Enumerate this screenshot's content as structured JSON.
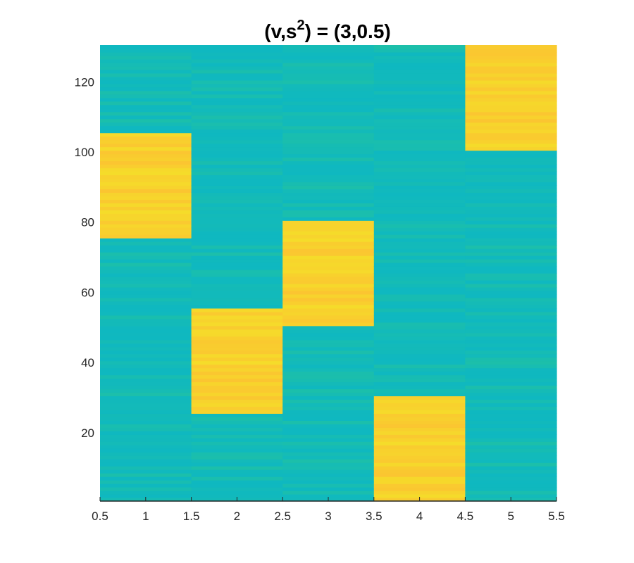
{
  "chart_data": {
    "type": "heatmap",
    "title_main": "(v,s",
    "title_sup": "2",
    "title_rest": ") = (3,0.5)",
    "xlim": [
      0.5,
      5.5
    ],
    "ylim": [
      0.5,
      130.5
    ],
    "xticks": [
      "0.5",
      "1",
      "1.5",
      "2",
      "2.5",
      "3",
      "3.5",
      "4",
      "4.5",
      "5",
      "5.5"
    ],
    "yticks": [
      "20",
      "40",
      "60",
      "80",
      "100",
      "120"
    ],
    "columns": [
      1,
      2,
      3,
      4,
      5
    ],
    "rows": 130,
    "blocks": [
      {
        "column": 1,
        "row_from": 76,
        "row_to": 105
      },
      {
        "column": 2,
        "row_from": 26,
        "row_to": 55
      },
      {
        "column": 3,
        "row_from": 51,
        "row_to": 80
      },
      {
        "column": 4,
        "row_from": 1,
        "row_to": 30
      },
      {
        "column": 5,
        "row_from": 101,
        "row_to": 130
      }
    ],
    "colors": {
      "low": "#0fb8c0",
      "low_alt": "#1cbfaa",
      "high": "#fbc531",
      "high_alt": "#f5dc2a"
    },
    "grid": false
  }
}
